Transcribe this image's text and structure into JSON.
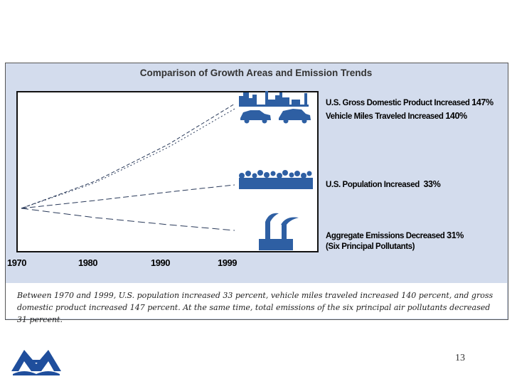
{
  "chart_data": {
    "type": "line",
    "title": "Comparison of Growth Areas and Emission Trends",
    "x": [
      1970,
      1980,
      1990,
      1999
    ],
    "xlim": [
      1970,
      1999
    ],
    "ylabel": "",
    "xlabel": "",
    "grid": false,
    "series": [
      {
        "name": "U.S. Gross Domestic Product Increased",
        "pct": "147%",
        "values": [
          0,
          38,
          90,
          147
        ],
        "start_year": 1970,
        "end_year": 1999
      },
      {
        "name": "Vehicle Miles Traveled Increased",
        "pct": "140%",
        "values": [
          0,
          36,
          86,
          140
        ],
        "start_year": 1970,
        "end_year": 1999
      },
      {
        "name": "U.S. Population Increased",
        "pct": "33%",
        "values": [
          0,
          11,
          23,
          33
        ],
        "start_year": 1970,
        "end_year": 1999
      },
      {
        "name": "Aggregate Emissions Decreased",
        "pct": "31%",
        "values": [
          0,
          -13,
          -23,
          -31
        ],
        "start_year": 1970,
        "end_year": 1999
      }
    ],
    "ylim": [
      -50,
      175
    ],
    "tick_labels": [
      "1970",
      "1980",
      "1990",
      "1999"
    ],
    "emissions_sublabel": "(Six Principal Pollutants)"
  },
  "caption": "Between 1970 and 1999, U.S. population increased 33 percent, vehicle miles traveled increased 140 percent, and gross domestic product increased 147 percent. At the same time, total emissions of the six principal air pollutants decreased 31 percent.",
  "page_number": "13",
  "colors": {
    "panel": "#d3dced",
    "icon": "#2e5fa3",
    "logo": "#1f4e9c"
  },
  "icons": [
    "city-skyline-icon",
    "car-icon",
    "crowd-icon",
    "factory-smokestack-icon",
    "epa-logo-icon"
  ]
}
